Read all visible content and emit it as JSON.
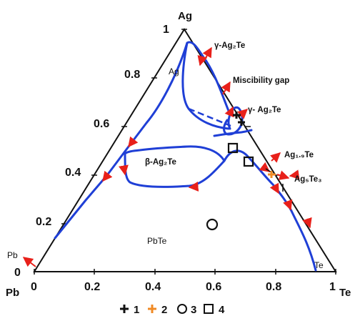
{
  "corners": {
    "top": "Ag",
    "left": "Pb",
    "right": "Te"
  },
  "left_axis_ticks": [
    "1",
    "0.8",
    "0.6",
    "0.4",
    "0.2",
    "0"
  ],
  "bottom_axis_ticks": [
    "0",
    "0.2",
    "0.4",
    "0.6",
    "0.8",
    "1"
  ],
  "labels": {
    "gamma_top": "γ-Ag₂Te",
    "miscibility": "Miscibility gap",
    "gamma_mid": "γ- Ag₂Te",
    "ag_region": "Ag",
    "beta": "β-Ag₂Te",
    "ag19te": "Ag₁.₉Te",
    "ag5te3": "Ag₅Te₃",
    "pbte": "PbTe",
    "te_corner_label": "Te",
    "pb_corner_label": "Pb"
  },
  "legend": [
    {
      "marker": "plus",
      "label": "1",
      "color": "#111111"
    },
    {
      "marker": "plus",
      "label": "2",
      "color": "#f08a24"
    },
    {
      "marker": "circle",
      "label": "3",
      "color": "#111111"
    },
    {
      "marker": "square",
      "label": "4",
      "color": "#111111"
    }
  ],
  "colors": {
    "curve": "#1f3fd6",
    "arrow": "#e8201a",
    "frame": "#111111",
    "orange": "#f08a24"
  }
}
